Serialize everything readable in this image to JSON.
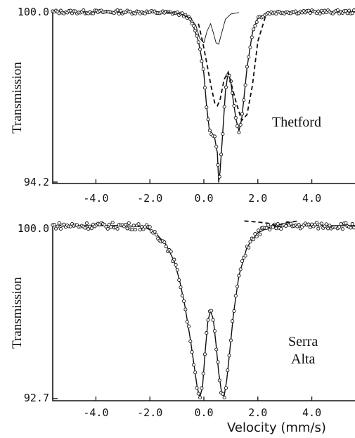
{
  "chart_data": [
    {
      "type": "line",
      "sample_label": [
        "Thetford"
      ],
      "ylabel": "Transmission",
      "xlabel": "",
      "xlim": [
        -5.6,
        5.6
      ],
      "ylim": [
        94.2,
        100.0
      ],
      "y_tick_labels": [
        "100.0",
        "94.2"
      ],
      "x_tick_labels": [
        "-4.0",
        "-2.0",
        "0.0",
        "2.0",
        "4.0"
      ],
      "x_ticks": [
        -4.0,
        -2.0,
        0.0,
        2.0,
        4.0
      ],
      "series": [
        {
          "style": "points",
          "x": [
            -5.6,
            -5.0,
            -4.0,
            -3.0,
            -2.0,
            -1.0,
            -0.6,
            -0.4,
            -0.2,
            -0.1,
            0.0,
            0.1,
            0.2,
            0.3,
            0.4,
            0.5,
            0.55,
            0.6,
            0.7,
            0.8,
            0.9,
            1.0,
            1.1,
            1.2,
            1.3,
            1.4,
            1.5,
            1.6,
            1.8,
            2.0,
            2.4,
            3.0,
            4.0,
            5.0,
            5.6
          ],
          "y": [
            100.0,
            100.0,
            100.0,
            100.0,
            99.99,
            99.96,
            99.85,
            99.55,
            99.0,
            98.5,
            97.9,
            96.8,
            96.0,
            95.85,
            95.7,
            95.2,
            94.2,
            94.55,
            95.9,
            97.3,
            97.95,
            97.6,
            96.9,
            96.3,
            95.95,
            96.35,
            97.2,
            98.1,
            99.3,
            99.8,
            99.97,
            100.0,
            100.0,
            100.0,
            100.0
          ]
        },
        {
          "style": "dashed",
          "x": [
            -0.2,
            -0.05,
            0.1,
            0.25,
            0.4,
            0.5,
            0.6,
            0.75,
            0.9,
            1.0,
            1.2,
            1.4,
            1.6,
            1.8,
            2.0,
            2.3
          ],
          "y": [
            99.6,
            99.0,
            98.3,
            97.55,
            96.9,
            96.8,
            97.0,
            97.7,
            97.95,
            97.6,
            96.9,
            96.3,
            96.5,
            97.5,
            99.0,
            99.9
          ]
        },
        {
          "style": "thin",
          "x": [
            -1.4,
            -0.9,
            -0.5,
            -0.3,
            -0.15,
            0.0,
            0.12,
            0.25,
            0.35,
            0.45,
            0.55,
            0.65,
            0.8,
            1.0,
            1.3
          ],
          "y": [
            100.0,
            99.95,
            99.8,
            99.55,
            99.1,
            98.95,
            99.35,
            99.6,
            99.3,
            98.95,
            98.9,
            99.25,
            99.75,
            99.93,
            99.98
          ]
        }
      ]
    },
    {
      "type": "line",
      "sample_label": [
        "Serra",
        "Alta"
      ],
      "ylabel": "Transmission",
      "xlabel": "Velocity (mm/s)",
      "xlim": [
        -5.6,
        5.6
      ],
      "ylim": [
        92.7,
        100.0
      ],
      "y_tick_labels": [
        "100.0",
        "92.7"
      ],
      "x_tick_labels": [
        "-4.0",
        "-2.0",
        "0.0",
        "2.0",
        "4.0"
      ],
      "x_ticks": [
        -4.0,
        -2.0,
        0.0,
        2.0,
        4.0
      ],
      "series": [
        {
          "style": "points",
          "x": [
            -5.6,
            -5.0,
            -4.0,
            -3.0,
            -2.2,
            -1.8,
            -1.4,
            -1.1,
            -0.9,
            -0.7,
            -0.5,
            -0.35,
            -0.25,
            -0.15,
            -0.05,
            0.05,
            0.15,
            0.25,
            0.35,
            0.45,
            0.55,
            0.65,
            0.75,
            0.85,
            0.95,
            1.1,
            1.3,
            1.6,
            2.0,
            2.4,
            3.0,
            4.0,
            5.0,
            5.6
          ],
          "y": [
            100.0,
            100.0,
            100.0,
            100.0,
            99.95,
            99.7,
            99.2,
            98.5,
            97.7,
            96.6,
            95.2,
            94.0,
            93.2,
            92.75,
            93.2,
            94.7,
            96.0,
            96.4,
            96.05,
            95.0,
            93.8,
            93.0,
            92.8,
            93.5,
            94.6,
            96.3,
            97.9,
            99.1,
            99.7,
            99.92,
            100.0,
            100.0,
            100.0,
            100.0
          ]
        },
        {
          "style": "dashed",
          "x": [
            1.5,
            2.0,
            2.4,
            2.7,
            3.0,
            3.5
          ],
          "y": [
            100.2,
            100.15,
            100.1,
            100.0,
            100.12,
            100.2
          ]
        }
      ]
    }
  ]
}
